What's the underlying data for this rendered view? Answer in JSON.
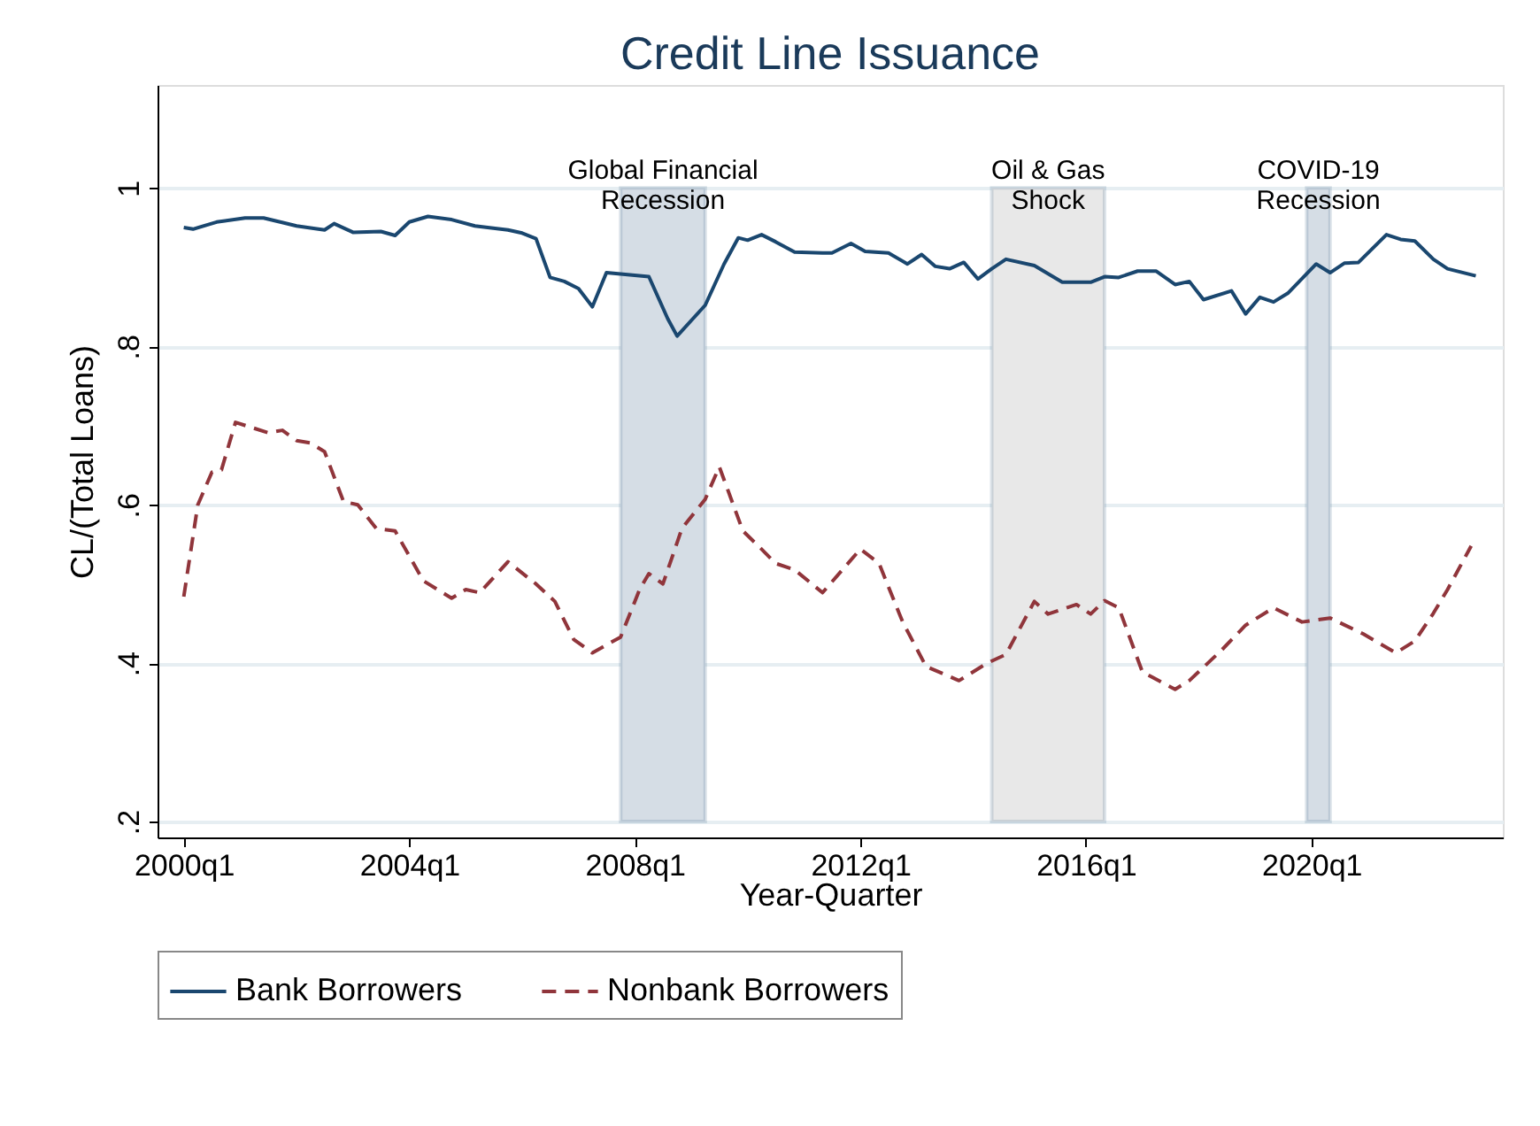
{
  "chart_data": {
    "type": "line",
    "title": "Credit Line Issuance",
    "xlabel": "Year-Quarter",
    "ylabel": "CL/(Total Loans)",
    "xlim": [
      "1999-07-15",
      "2023-05-25"
    ],
    "ylim": [
      0.18,
      1.13
    ],
    "xticks": [
      {
        "value": "2000-01",
        "label": "2000q1"
      },
      {
        "value": "2004-01",
        "label": "2004q1"
      },
      {
        "value": "2008-01",
        "label": "2008q1"
      },
      {
        "value": "2012-01",
        "label": "2012q1"
      },
      {
        "value": "2016-01",
        "label": "2016q1"
      },
      {
        "value": "2020-01",
        "label": "2020q1"
      }
    ],
    "yticks": [
      {
        "value": 0.2,
        "label": ".2"
      },
      {
        "value": 0.4,
        "label": ".4"
      },
      {
        "value": 0.6,
        "label": ".6"
      },
      {
        "value": 0.8,
        "label": ".8"
      },
      {
        "value": 1,
        "label": "1"
      }
    ],
    "grid": "y",
    "legend": "bottom",
    "bands": [
      {
        "axis": "x",
        "from": "2007-10",
        "to": "2009-04",
        "label": "Global Financial\nRecession",
        "color": "#d5dde5"
      },
      {
        "axis": "x",
        "from": "2014-05",
        "to": "2016-05",
        "label": "Oil & Gas\nShock",
        "color": "#e8e8e8"
      },
      {
        "axis": "x",
        "from": "2019-12",
        "to": "2020-05",
        "label": "COVID-19\nRecession",
        "color": "#d5dde5"
      }
    ],
    "series": [
      {
        "name": "Bank Borrowers",
        "color": "#1a476f",
        "line_style": "solid",
        "x": [
          "2000-01",
          "2000-03",
          "2000-08",
          "2001-02",
          "2001-06",
          "2002-01",
          "2002-07",
          "2002-09",
          "2003-01",
          "2003-07",
          "2003-10",
          "2004-01",
          "2004-05",
          "2004-10",
          "2005-03",
          "2005-10",
          "2006-01",
          "2006-04",
          "2006-07",
          "2006-10",
          "2007-01",
          "2007-04",
          "2007-07",
          "2008-04",
          "2008-08",
          "2008-10",
          "2009-04",
          "2009-08",
          "2009-11",
          "2010-01",
          "2010-04",
          "2010-07",
          "2010-11",
          "2011-05",
          "2011-07",
          "2011-11",
          "2012-02",
          "2012-07",
          "2012-11",
          "2013-02",
          "2013-05",
          "2013-08",
          "2013-11",
          "2014-02",
          "2014-05",
          "2014-08",
          "2015-02",
          "2015-08",
          "2016-02",
          "2016-05",
          "2016-08",
          "2016-12",
          "2017-04",
          "2017-08",
          "2017-11",
          "2018-02",
          "2018-08",
          "2018-11",
          "2019-02",
          "2019-05",
          "2019-08",
          "2020-02",
          "2020-05",
          "2020-08",
          "2020-11",
          "2021-05",
          "2021-08",
          "2021-11",
          "2022-03",
          "2022-06",
          "2022-12"
        ],
        "values": [
          0.95,
          0.948,
          0.957,
          0.962,
          0.962,
          0.952,
          0.947,
          0.955,
          0.944,
          0.945,
          0.94,
          0.957,
          0.964,
          0.96,
          0.952,
          0.947,
          0.943,
          0.936,
          0.887,
          0.882,
          0.873,
          0.85,
          0.893,
          0.888,
          0.835,
          0.813,
          0.852,
          0.904,
          0.937,
          0.934,
          0.941,
          0.932,
          0.919,
          0.918,
          0.918,
          0.93,
          0.92,
          0.918,
          0.904,
          0.916,
          0.901,
          0.898,
          0.906,
          0.885,
          0.898,
          0.91,
          0.902,
          0.881,
          0.881,
          0.888,
          0.887,
          0.895,
          0.895,
          0.878,
          0.882,
          0.859,
          0.87,
          0.841,
          0.862,
          0.856,
          0.867,
          0.904,
          0.893,
          0.905,
          0.906,
          0.941,
          0.935,
          0.933,
          0.91,
          0.898,
          0.889
        ]
      },
      {
        "name": "Nonbank Borrowers",
        "color": "#90353b",
        "line_style": "dashed",
        "x": [
          "2000-01",
          "2000-04",
          "2000-07",
          "2000-09",
          "2000-12",
          "2001-07",
          "2001-10",
          "2002-01",
          "2002-04",
          "2002-07",
          "2002-11",
          "2003-02",
          "2003-06",
          "2003-10",
          "2004-04",
          "2004-10",
          "2005-01",
          "2005-04",
          "2005-10",
          "2006-04",
          "2006-08",
          "2006-12",
          "2007-04",
          "2007-10",
          "2008-02",
          "2008-04",
          "2008-07",
          "2008-11",
          "2009-04",
          "2009-07",
          "2009-12",
          "2010-04",
          "2010-07",
          "2010-11",
          "2011-05",
          "2012-01",
          "2012-05",
          "2012-10",
          "2013-03",
          "2013-10",
          "2014-04",
          "2014-08",
          "2015-02",
          "2015-05",
          "2015-11",
          "2016-02",
          "2016-05",
          "2016-08",
          "2017-01",
          "2017-08",
          "2017-11",
          "2018-06",
          "2018-11",
          "2019-05",
          "2019-11",
          "2020-05",
          "2020-12",
          "2021-07",
          "2021-11",
          "2022-03",
          "2022-06",
          "2022-11"
        ],
        "values": [
          0.484,
          0.6,
          0.641,
          0.644,
          0.704,
          0.691,
          0.694,
          0.681,
          0.678,
          0.667,
          0.604,
          0.6,
          0.57,
          0.567,
          0.504,
          0.482,
          0.493,
          0.489,
          0.528,
          0.5,
          0.478,
          0.43,
          0.413,
          0.433,
          0.493,
          0.513,
          0.5,
          0.57,
          0.607,
          0.648,
          0.567,
          0.544,
          0.526,
          0.518,
          0.489,
          0.544,
          0.526,
          0.452,
          0.396,
          0.378,
          0.4,
          0.411,
          0.478,
          0.462,
          0.474,
          0.462,
          0.479,
          0.47,
          0.389,
          0.367,
          0.378,
          0.417,
          0.448,
          0.47,
          0.452,
          0.457,
          0.437,
          0.413,
          0.428,
          0.463,
          0.493,
          0.548
        ]
      }
    ]
  }
}
